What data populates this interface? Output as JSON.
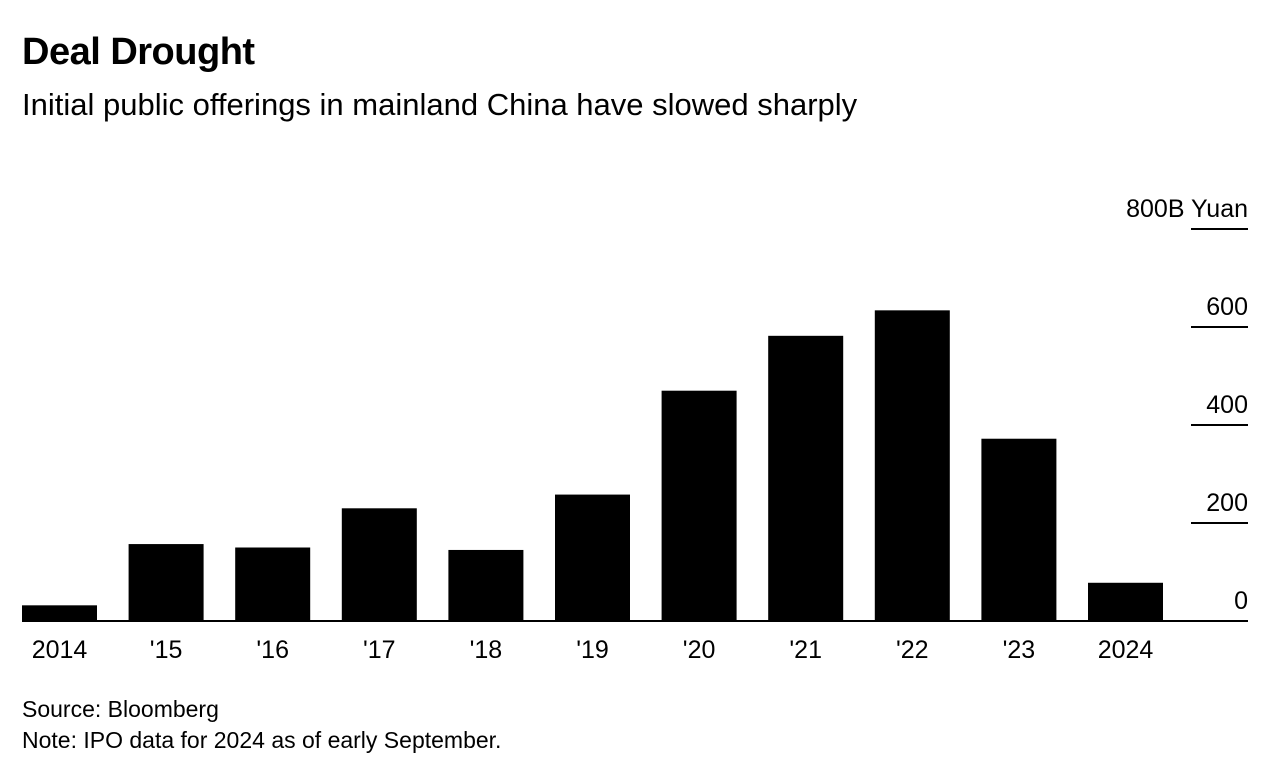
{
  "header": {
    "title": "Deal Drought",
    "subtitle": "Initial public offerings in mainland China have slowed sharply"
  },
  "footer": {
    "source": "Source: Bloomberg",
    "note": "Note: IPO data for 2024 as of early September."
  },
  "colors": {
    "bar": "#000000",
    "axis": "#000000",
    "background": "#ffffff"
  },
  "chart_data": {
    "type": "bar",
    "title": "Deal Drought",
    "subtitle": "Initial public offerings in mainland China have slowed sharply",
    "categories": [
      "2014",
      "'15",
      "'16",
      "'17",
      "'18",
      "'19",
      "'20",
      "'21",
      "'22",
      "'23",
      "2024"
    ],
    "values": [
      32,
      157,
      150,
      230,
      145,
      258,
      470,
      582,
      634,
      372,
      78
    ],
    "yaxis": {
      "unit_label": "800B Yuan",
      "tick_labels": [
        "800B Yuan",
        "600",
        "400",
        "200",
        "0"
      ],
      "ticks": [
        800,
        600,
        400,
        200,
        0
      ],
      "position": "right"
    },
    "ylim": [
      0,
      800
    ],
    "grid": false,
    "legend": "none"
  }
}
